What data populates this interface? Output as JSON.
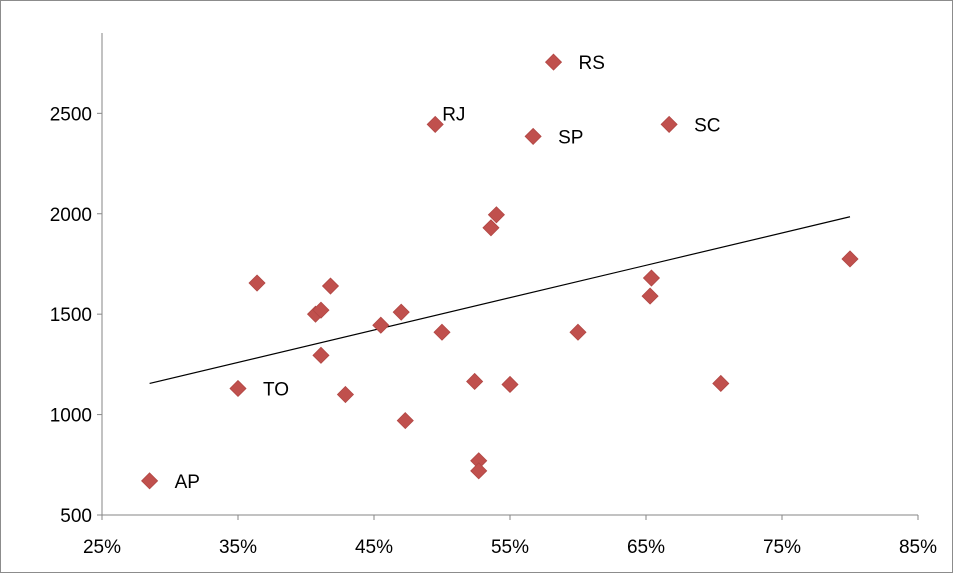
{
  "chart_data": {
    "type": "scatter",
    "title": "",
    "xlabel": "",
    "ylabel": "",
    "xlim": [
      0.25,
      0.85
    ],
    "ylim": [
      500,
      2900
    ],
    "x_ticks": [
      0.25,
      0.35,
      0.45,
      0.55,
      0.65,
      0.75,
      0.85
    ],
    "x_tick_labels": [
      "25%",
      "35%",
      "45%",
      "55%",
      "65%",
      "75%",
      "85%"
    ],
    "y_ticks": [
      500,
      1000,
      1500,
      2000,
      2500
    ],
    "y_tick_labels": [
      "500",
      "1000",
      "1500",
      "2000",
      "2500"
    ],
    "grid": false,
    "marker_color": "#c0504d",
    "trendline_color": "#000000",
    "points": [
      {
        "x": 0.285,
        "y": 670,
        "label": "AP"
      },
      {
        "x": 0.35,
        "y": 1130,
        "label": "TO"
      },
      {
        "x": 0.364,
        "y": 1655,
        "label": ""
      },
      {
        "x": 0.407,
        "y": 1500,
        "label": ""
      },
      {
        "x": 0.411,
        "y": 1520,
        "label": ""
      },
      {
        "x": 0.411,
        "y": 1295,
        "label": ""
      },
      {
        "x": 0.418,
        "y": 1640,
        "label": ""
      },
      {
        "x": 0.429,
        "y": 1100,
        "label": ""
      },
      {
        "x": 0.455,
        "y": 1445,
        "label": ""
      },
      {
        "x": 0.47,
        "y": 1510,
        "label": ""
      },
      {
        "x": 0.473,
        "y": 970,
        "label": ""
      },
      {
        "x": 0.495,
        "y": 2445,
        "label": "RJ"
      },
      {
        "x": 0.5,
        "y": 1410,
        "label": ""
      },
      {
        "x": 0.524,
        "y": 1165,
        "label": ""
      },
      {
        "x": 0.527,
        "y": 770,
        "label": ""
      },
      {
        "x": 0.527,
        "y": 720,
        "label": ""
      },
      {
        "x": 0.536,
        "y": 1930,
        "label": ""
      },
      {
        "x": 0.54,
        "y": 1995,
        "label": ""
      },
      {
        "x": 0.55,
        "y": 1150,
        "label": ""
      },
      {
        "x": 0.567,
        "y": 2385,
        "label": "SP"
      },
      {
        "x": 0.582,
        "y": 2755,
        "label": "RS"
      },
      {
        "x": 0.6,
        "y": 1410,
        "label": ""
      },
      {
        "x": 0.653,
        "y": 1590,
        "label": ""
      },
      {
        "x": 0.654,
        "y": 1680,
        "label": ""
      },
      {
        "x": 0.667,
        "y": 2445,
        "label": "SC"
      },
      {
        "x": 0.705,
        "y": 1155,
        "label": ""
      },
      {
        "x": 0.8,
        "y": 1775,
        "label": ""
      }
    ],
    "trendline": {
      "x": [
        0.285,
        0.8
      ],
      "y": [
        1155,
        1985
      ]
    }
  }
}
